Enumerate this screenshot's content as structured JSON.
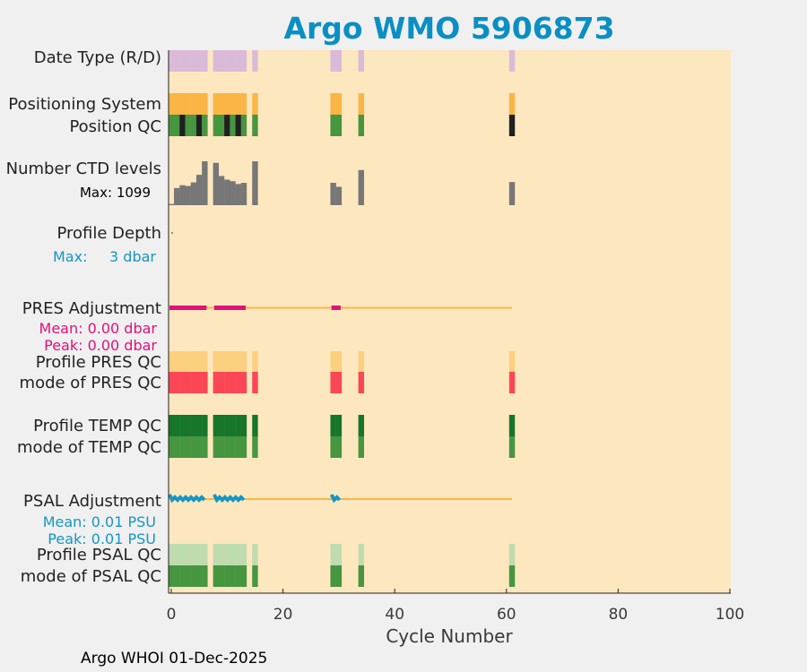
{
  "title": "Argo WMO 5906873",
  "footer": "Argo WHOI 01-Dec-2025",
  "colors": {
    "background": "#fde7bf",
    "title": "#0a8fc4",
    "axis_text": "#3a3a3a",
    "magenta": "#e0117a",
    "cyan": "#1596c4"
  },
  "chart_data": {
    "type": "bar",
    "xlabel": "Cycle Number",
    "xlim": [
      0,
      100
    ],
    "xticks": [
      "0",
      "20",
      "40",
      "60",
      "80",
      "100"
    ],
    "cycle_groups": [
      [
        0,
        6
      ],
      [
        8,
        13
      ],
      [
        15,
        15
      ],
      [
        29,
        30
      ],
      [
        34,
        34
      ],
      [
        61,
        61
      ]
    ],
    "rows": {
      "date_type": {
        "label": "Date Type (R/D)",
        "color": "#dbbad9"
      },
      "positioning_system": {
        "label": "Positioning System",
        "color": "#fbb544"
      },
      "position_qc": {
        "label": "Position QC",
        "color": "#46963f",
        "dark_cycles": [
          2,
          5,
          10,
          12,
          61
        ],
        "dark_color": "#202020"
      },
      "ctd_levels": {
        "label": "Number CTD levels",
        "max_label": "Max: 1099",
        "max": 1099,
        "color": "#777777",
        "cycles": [
          0,
          1,
          2,
          3,
          4,
          5,
          6,
          8,
          9,
          10,
          11,
          12,
          13,
          15,
          29,
          30,
          34,
          61
        ],
        "values": [
          30,
          430,
          500,
          480,
          570,
          760,
          1099,
          1060,
          730,
          640,
          600,
          530,
          560,
          1099,
          560,
          460,
          880,
          580
        ]
      },
      "profile_depth": {
        "label": "Profile Depth",
        "max_prefix": "Max:",
        "max_value": "3 dbar"
      },
      "pres_adjustment": {
        "label": "PRES Adjustment",
        "mean": "Mean: 0.00 dbar",
        "peak": "Peak: 0.00 dbar",
        "line_range": [
          0,
          61
        ],
        "segments": [
          [
            0,
            6
          ],
          [
            8,
            13
          ],
          [
            29,
            30
          ]
        ]
      },
      "profile_pres_qc": {
        "label": "Profile PRES QC",
        "color": "#fbd07f"
      },
      "mode_pres_qc": {
        "label": "mode of PRES QC",
        "color": "#fb4655"
      },
      "profile_temp_qc": {
        "label": "Profile TEMP QC",
        "color": "#16762a"
      },
      "mode_temp_qc": {
        "label": "mode of TEMP QC",
        "color": "#46963f"
      },
      "psal_adjustment": {
        "label": "PSAL Adjustment",
        "mean": "Mean: 0.01 PSU",
        "peak": "Peak: 0.01 PSU",
        "line_range": [
          0,
          61
        ],
        "segments": [
          [
            0,
            6
          ],
          [
            8,
            13
          ],
          [
            29,
            30
          ]
        ]
      },
      "profile_psal_qc": {
        "label": "Profile PSAL QC",
        "color": "#bfdcae"
      },
      "mode_psal_qc": {
        "label": "mode of PSAL QC",
        "color": "#46963f"
      }
    }
  }
}
